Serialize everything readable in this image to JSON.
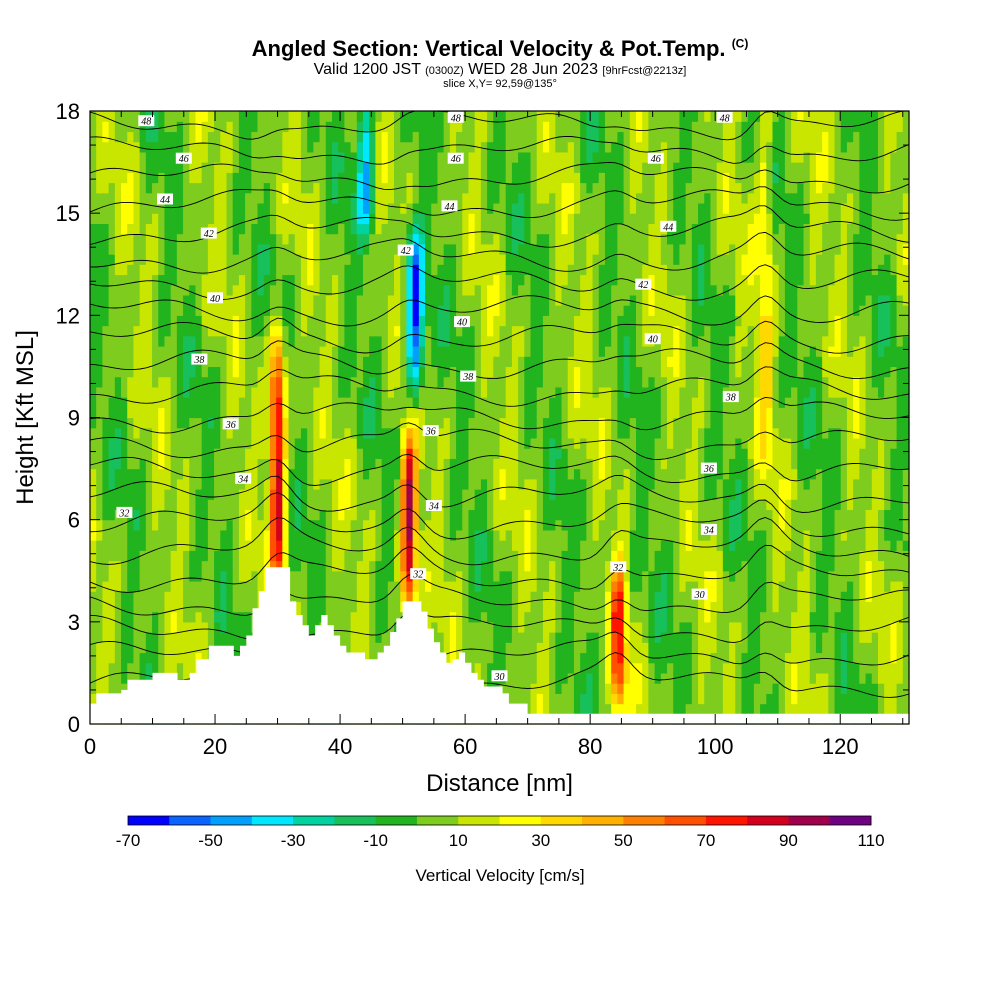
{
  "title": {
    "main": "Angled Section: Vertical Velocity & Pot.Temp.",
    "copyright": "(C)",
    "valid_prefix": "Valid 1200 JST",
    "utc": "(0300Z)",
    "valid_date": "WED 28 Jun 2023",
    "forecast": "[9hrFcst@2213z]",
    "slice": "slice X,Y= 92,59@135°"
  },
  "chart_data": {
    "type": "heatmap",
    "xlabel": "Distance [nm]",
    "ylabel": "Height [Kft MSL]",
    "xlim": [
      0,
      131
    ],
    "ylim": [
      0,
      18
    ],
    "x_ticks": [
      "0",
      "20",
      "40",
      "60",
      "80",
      "100",
      "120"
    ],
    "y_ticks": [
      "0",
      "3",
      "6",
      "9",
      "12",
      "15",
      "18"
    ],
    "colorbar": {
      "title": "Vertical Velocity [cm/s]",
      "labels": [
        "-70",
        "-50",
        "-30",
        "-10",
        "10",
        "30",
        "50",
        "70",
        "90",
        "110"
      ],
      "bins": [
        -70,
        -60,
        -50,
        -40,
        -30,
        -20,
        -10,
        0,
        10,
        20,
        30,
        40,
        50,
        60,
        70,
        80,
        90,
        100,
        110
      ],
      "colors": [
        "#0000ff",
        "#0a64ff",
        "#00a0ff",
        "#00e8ff",
        "#00d3a0",
        "#17c05a",
        "#22b41e",
        "#7ecc1e",
        "#c8e600",
        "#ffff00",
        "#ffd800",
        "#ffb000",
        "#ff8000",
        "#ff5000",
        "#ff1400",
        "#d2001e",
        "#a0004b",
        "#6e0082"
      ]
    },
    "updrafts": [
      {
        "x": 30,
        "z_bottom": 4.6,
        "z_top": 11.0,
        "peak_cm_s": 90
      },
      {
        "x": 51,
        "z_bottom": 3.8,
        "z_top": 8.0,
        "peak_cm_s": 90
      },
      {
        "x": 84.5,
        "z_bottom": 1.0,
        "z_top": 4.2,
        "peak_cm_s": 70
      },
      {
        "x": 108,
        "z_bottom": 8.0,
        "z_top": 18.0,
        "peak_cm_s": 30
      }
    ],
    "downdrafts": [
      {
        "x": 52,
        "z_bottom": 10.0,
        "z_top": 14.0,
        "peak_cm_s": -60
      },
      {
        "x": 44,
        "z_bottom": 15.0,
        "z_top": 18.0,
        "peak_cm_s": -40
      }
    ],
    "theta_contours_K": [
      30,
      32,
      34,
      36,
      38,
      40,
      42,
      44,
      46,
      48
    ],
    "contour_labels": [
      {
        "text": "48",
        "x": 9,
        "z": 17.7
      },
      {
        "text": "46",
        "x": 15,
        "z": 16.6
      },
      {
        "text": "44",
        "x": 12,
        "z": 15.4
      },
      {
        "text": "42",
        "x": 19,
        "z": 14.4
      },
      {
        "text": "40",
        "x": 20,
        "z": 12.5
      },
      {
        "text": "38",
        "x": 17.5,
        "z": 10.7
      },
      {
        "text": "36",
        "x": 22.5,
        "z": 8.8
      },
      {
        "text": "34",
        "x": 24.5,
        "z": 7.2
      },
      {
        "text": "32",
        "x": 5.5,
        "z": 6.2
      },
      {
        "text": "42",
        "x": 50.5,
        "z": 13.9
      },
      {
        "text": "44",
        "x": 57.5,
        "z": 15.2
      },
      {
        "text": "46",
        "x": 58.5,
        "z": 16.6
      },
      {
        "text": "48",
        "x": 58.5,
        "z": 17.8
      },
      {
        "text": "40",
        "x": 59.5,
        "z": 11.8
      },
      {
        "text": "38",
        "x": 60.5,
        "z": 10.2
      },
      {
        "text": "36",
        "x": 54.5,
        "z": 8.6
      },
      {
        "text": "34",
        "x": 55,
        "z": 6.4
      },
      {
        "text": "32",
        "x": 52.5,
        "z": 4.4
      },
      {
        "text": "30",
        "x": 65.5,
        "z": 1.4
      },
      {
        "text": "32",
        "x": 84.5,
        "z": 4.6
      },
      {
        "text": "30",
        "x": 97.5,
        "z": 3.8
      },
      {
        "text": "34",
        "x": 99,
        "z": 5.7
      },
      {
        "text": "36",
        "x": 99,
        "z": 7.5
      },
      {
        "text": "38",
        "x": 102.5,
        "z": 9.6
      },
      {
        "text": "40",
        "x": 90,
        "z": 11.3
      },
      {
        "text": "42",
        "x": 88.5,
        "z": 12.9
      },
      {
        "text": "44",
        "x": 92.5,
        "z": 14.6
      },
      {
        "text": "46",
        "x": 90.5,
        "z": 16.6
      },
      {
        "text": "48",
        "x": 101.5,
        "z": 17.8
      }
    ],
    "terrain_kft": [
      [
        0,
        0.6
      ],
      [
        1,
        0.9
      ],
      [
        5,
        1.0
      ],
      [
        6,
        1.3
      ],
      [
        10,
        1.5
      ],
      [
        14,
        1.3
      ],
      [
        16,
        1.5
      ],
      [
        17,
        1.9
      ],
      [
        19,
        2.3
      ],
      [
        22,
        2.3
      ],
      [
        23,
        2.0
      ],
      [
        24,
        2.3
      ],
      [
        25,
        2.6
      ],
      [
        26,
        3.4
      ],
      [
        27,
        3.9
      ],
      [
        28,
        4.6
      ],
      [
        31,
        4.6
      ],
      [
        32,
        3.6
      ],
      [
        33,
        3.2
      ],
      [
        34,
        2.9
      ],
      [
        35,
        2.6
      ],
      [
        36,
        2.9
      ],
      [
        37,
        3.2
      ],
      [
        38,
        2.9
      ],
      [
        39,
        2.6
      ],
      [
        40,
        2.3
      ],
      [
        41,
        2.1
      ],
      [
        44,
        1.9
      ],
      [
        46,
        2.1
      ],
      [
        47,
        2.3
      ],
      [
        48,
        2.7
      ],
      [
        49,
        3.1
      ],
      [
        50,
        3.6
      ],
      [
        52,
        3.6
      ],
      [
        53,
        3.3
      ],
      [
        54,
        2.8
      ],
      [
        55,
        2.4
      ],
      [
        56,
        2.1
      ],
      [
        57,
        1.8
      ],
      [
        58,
        1.9
      ],
      [
        59,
        2.1
      ],
      [
        60,
        1.8
      ],
      [
        61,
        1.5
      ],
      [
        62,
        1.3
      ],
      [
        63,
        1.1
      ],
      [
        66,
        0.9
      ],
      [
        67,
        0.6
      ],
      [
        68,
        0.6
      ],
      [
        70,
        0.3
      ],
      [
        131,
        0.3
      ]
    ]
  }
}
